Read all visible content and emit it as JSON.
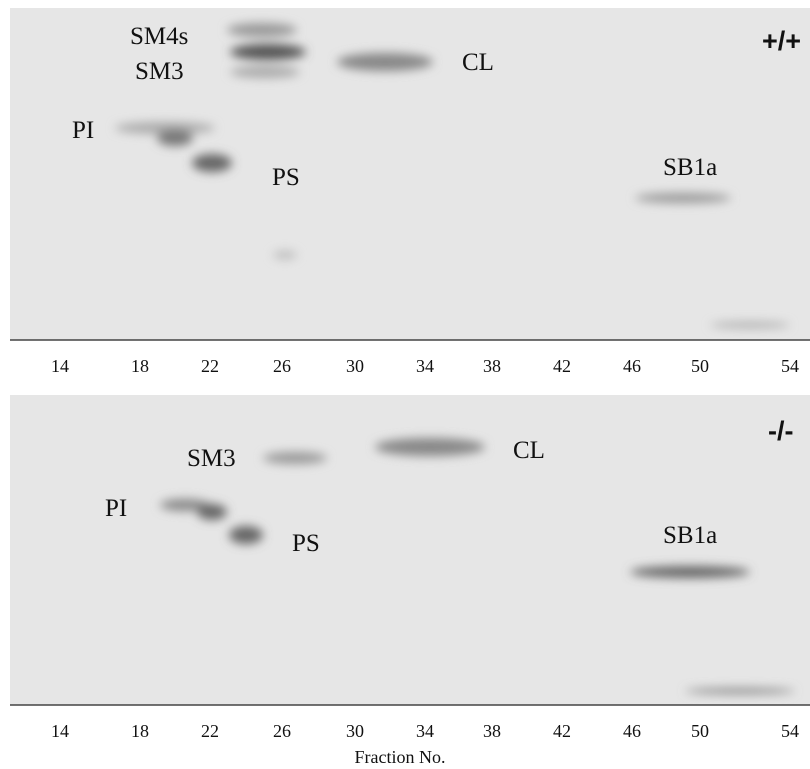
{
  "panels": [
    {
      "genotype": "+/+",
      "labels": [
        "SM4s",
        "SM3",
        "CL",
        "PI",
        "PS",
        "SB1a"
      ],
      "fractions": [
        14,
        18,
        22,
        26,
        30,
        34,
        38,
        42,
        46,
        50,
        54
      ]
    },
    {
      "genotype": "-/-",
      "labels": [
        "SM3",
        "CL",
        "PI",
        "PS",
        "SB1a"
      ],
      "fractions": [
        14,
        18,
        22,
        26,
        30,
        34,
        38,
        42,
        46,
        50,
        54
      ]
    }
  ],
  "x_axis_label": "Fraction No."
}
